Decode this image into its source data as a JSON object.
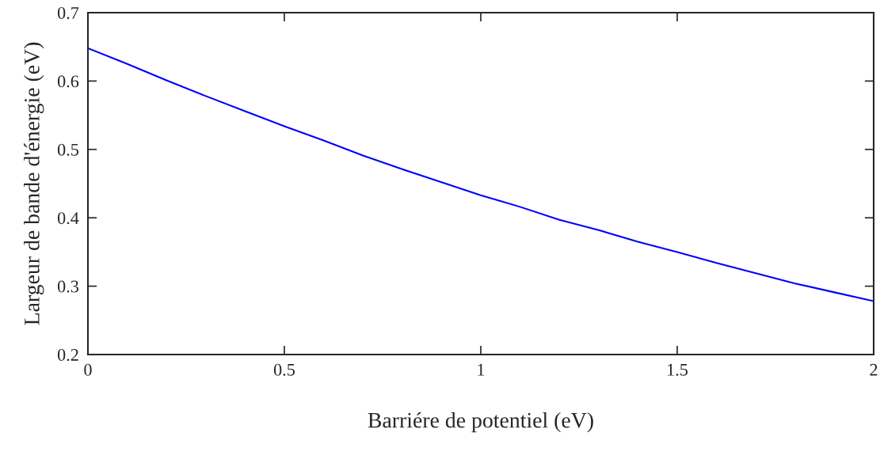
{
  "chart_data": {
    "type": "line",
    "xlabel": "Barriére de potentiel (eV)",
    "ylabel": "Largeur de bande d'énergie (eV)",
    "x": [
      0,
      0.1,
      0.2,
      0.3,
      0.4,
      0.5,
      0.6,
      0.7,
      0.8,
      0.9,
      1.0,
      1.1,
      1.2,
      1.3,
      1.4,
      1.5,
      1.6,
      1.7,
      1.8,
      1.9,
      2.0
    ],
    "series": [
      {
        "color": "#0000ff",
        "values": [
          0.648,
          0.625,
          0.601,
          0.578,
          0.556,
          0.534,
          0.513,
          0.491,
          0.471,
          0.452,
          0.433,
          0.416,
          0.397,
          0.382,
          0.365,
          0.35,
          0.334,
          0.319,
          0.304,
          0.291,
          0.278
        ]
      }
    ],
    "xlim": [
      0,
      2
    ],
    "xticks": [
      0,
      0.5,
      1,
      1.5,
      2
    ],
    "ylim": [
      0.2,
      0.7
    ],
    "yticks": [
      0.2,
      0.3,
      0.4,
      0.5,
      0.6,
      0.7
    ],
    "grid": false,
    "legend": false,
    "marker": "none",
    "line_style": "solid"
  }
}
